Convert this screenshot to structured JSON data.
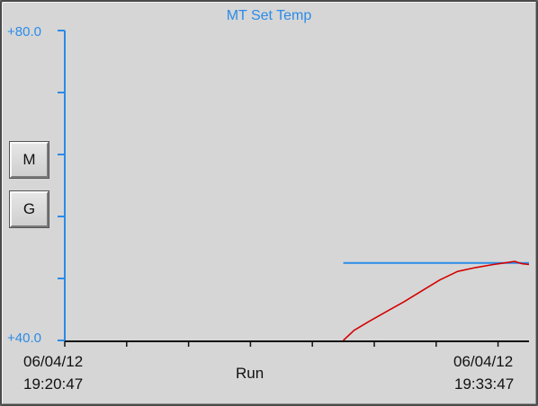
{
  "chart_title": "MT Set Temp",
  "y_axis": {
    "top_label": "+80.0",
    "bottom_label": "+40.0"
  },
  "x_axis": {
    "start_date": "06/04/12",
    "start_time": "19:20:47",
    "end_date": "06/04/12",
    "end_time": "19:33:47"
  },
  "status_label": "Run",
  "buttons": {
    "m_label": "M",
    "g_label": "G"
  },
  "colors": {
    "axis": "#2b8be8",
    "setpoint_line": "#2b8be8",
    "measured_line": "#d40000",
    "background": "#d6d6d6"
  },
  "chart_data": {
    "type": "line",
    "title": "MT Set Temp",
    "ylim": [
      40,
      80
    ],
    "x_range": [
      "06/04/12 19:20:47",
      "06/04/12 19:33:47"
    ],
    "x_ticks_minutes": [
      0,
      1.733,
      3.467,
      5.2,
      6.933,
      8.667,
      10.4,
      12.133
    ],
    "series": [
      {
        "role": "setpoint",
        "x_minutes": [
          7.8,
          13.0
        ],
        "values": [
          50.0,
          50.0
        ]
      },
      {
        "role": "measured",
        "x_minutes": [
          7.8,
          8.1,
          8.5,
          9.0,
          9.5,
          10.0,
          10.5,
          11.0,
          11.5,
          12.0,
          12.3,
          12.6,
          12.8,
          13.0
        ],
        "values": [
          40.0,
          41.3,
          42.4,
          43.7,
          45.0,
          46.4,
          47.8,
          48.9,
          49.4,
          49.8,
          50.0,
          50.2,
          49.9,
          49.8
        ]
      }
    ]
  }
}
